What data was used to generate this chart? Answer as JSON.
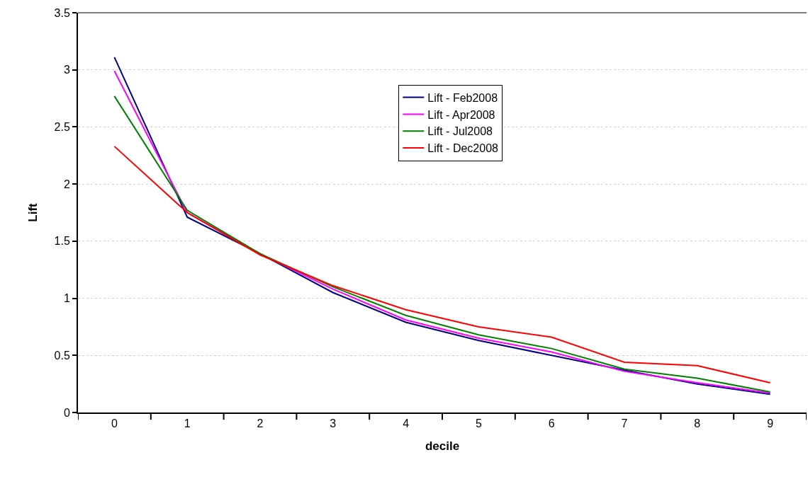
{
  "chart_data": {
    "type": "line",
    "xlabel": "decile",
    "ylabel": "Lift",
    "categories": [
      "0",
      "1",
      "2",
      "3",
      "4",
      "5",
      "6",
      "7",
      "8",
      "9"
    ],
    "series": [
      {
        "name": "Lift - Feb2008",
        "color": "#000080",
        "values": [
          3.11,
          1.71,
          1.39,
          1.05,
          0.79,
          0.63,
          0.5,
          0.37,
          0.25,
          0.16
        ]
      },
      {
        "name": "Lift - Apr2008",
        "color": "#ff00ff",
        "values": [
          2.99,
          1.75,
          1.39,
          1.08,
          0.81,
          0.65,
          0.53,
          0.36,
          0.26,
          0.17
        ]
      },
      {
        "name": "Lift - Jul2008",
        "color": "#008000",
        "values": [
          2.77,
          1.77,
          1.39,
          1.1,
          0.85,
          0.68,
          0.56,
          0.38,
          0.3,
          0.18
        ]
      },
      {
        "name": "Lift - Dec2008",
        "color": "#ff0000",
        "values": [
          2.33,
          1.75,
          1.38,
          1.11,
          0.9,
          0.75,
          0.66,
          0.44,
          0.41,
          0.26
        ]
      }
    ],
    "ylim": [
      0,
      3.5
    ],
    "yticks": [
      0,
      0.5,
      1,
      1.5,
      2,
      2.5,
      3,
      3.5
    ],
    "grid": "y",
    "legend": "top right",
    "marker": "none",
    "line_style": "solid"
  }
}
